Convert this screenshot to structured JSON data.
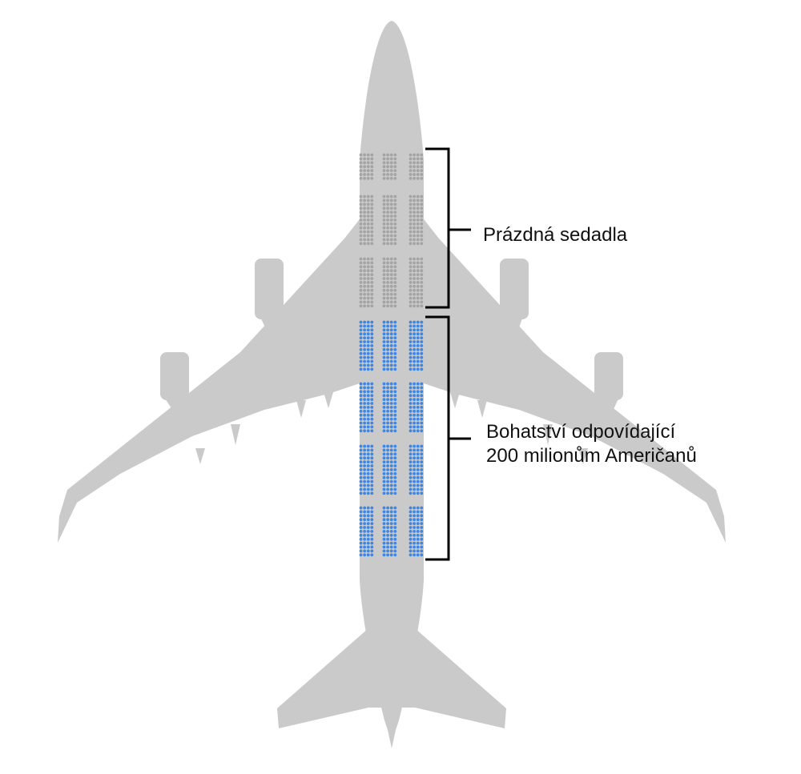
{
  "colors": {
    "airplane": "#c9cac9",
    "seat_empty": "#a3a4a3",
    "seat_filled": "#3c86e8",
    "bracket": "#000000"
  },
  "labels": {
    "empty_seats": "Prázdná sedadla",
    "wealth_line1": "Bohatství odpovídající",
    "wealth_line2": "200 milionům Američanů"
  }
}
